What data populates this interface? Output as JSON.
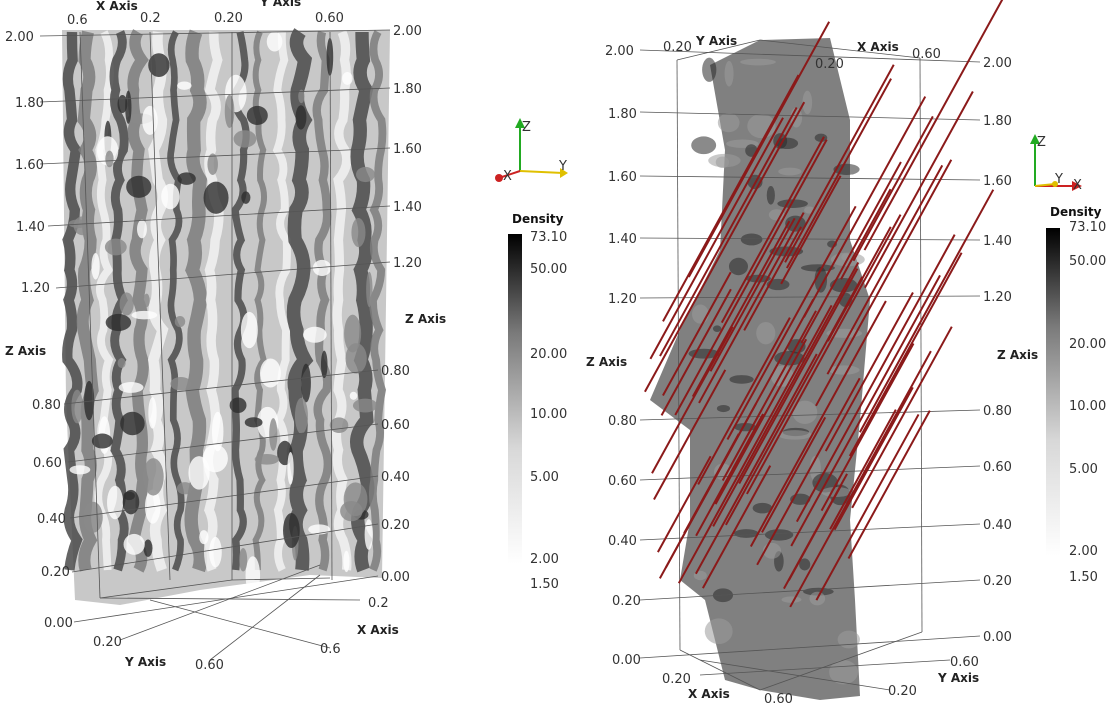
{
  "left_view": {
    "axis_titles": {
      "x": "X Axis",
      "y": "Y Axis",
      "z": "Z Axis",
      "z_right": "Z Axis",
      "x_top": "X Axis",
      "y_top": "Y Axis"
    },
    "z_ticks_left": [
      "2.00",
      "1.80",
      "1.60",
      "1.40",
      "1.20",
      "0.80",
      "0.60",
      "0.40",
      "0.20",
      "0.00"
    ],
    "z_ticks_right": [
      "2.00",
      "1.80",
      "1.60",
      "1.40",
      "1.20",
      "0.80",
      "0.60",
      "0.40",
      "0.20",
      "0.00"
    ],
    "top_ticks": [
      "0.6",
      "0.2",
      "0.20",
      "0.60"
    ],
    "bottom_y_ticks": [
      "0.20",
      "0.60"
    ],
    "bottom_x_ticks": [
      "0.2",
      "0.6"
    ],
    "orientation": {
      "x": "X",
      "y": "Y",
      "z": "Z"
    }
  },
  "left_colorbar": {
    "title": "Density",
    "ticks": [
      "73.10",
      "50.00",
      "20.00",
      "10.00",
      "5.00",
      "2.00",
      "1.50"
    ]
  },
  "right_view": {
    "axis_titles": {
      "x": "X Axis",
      "y": "Y Axis",
      "z": "Z Axis",
      "z_right": "Z Axis",
      "x_top": "X Axis",
      "y_top": "Y Axis"
    },
    "z_ticks_left": [
      "2.00",
      "1.80",
      "1.60",
      "1.40",
      "1.20",
      "0.80",
      "0.60",
      "0.40",
      "0.20",
      "0.00"
    ],
    "z_ticks_right": [
      "2.00",
      "1.80",
      "1.60",
      "1.40",
      "1.20",
      "0.80",
      "0.60",
      "0.40",
      "0.20",
      "0.00"
    ],
    "top_ticks": [
      "0.20",
      "0.20",
      "0.60"
    ],
    "bottom_x_ticks": [
      "0.20",
      "0.60"
    ],
    "bottom_y_ticks": [
      "0.60",
      "0.20"
    ],
    "orientation": {
      "x": "X",
      "y": "Y",
      "z": "Z"
    },
    "streamline_color": "#8b1a1a"
  },
  "right_colorbar": {
    "title": "Density",
    "ticks": [
      "73.10",
      "50.00",
      "20.00",
      "10.00",
      "5.00",
      "2.00",
      "1.50"
    ]
  },
  "colors": {
    "volume_dark": "#3a3a3a",
    "volume_mid": "#9a9a9a",
    "volume_light": "#e6e6e6",
    "axis_x": "#cc2222",
    "axis_y": "#e0c000",
    "axis_z": "#22aa22"
  }
}
